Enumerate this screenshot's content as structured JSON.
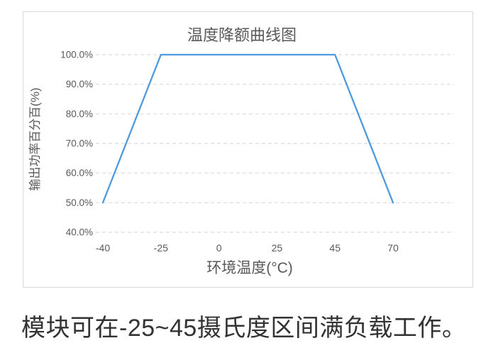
{
  "caption": "模块可在-25~45摄氏度区间满负载工作。",
  "chart_data": {
    "type": "line",
    "title": "温度降额曲线图",
    "xlabel": "环境温度(°C)",
    "ylabel": "输出功率百分百(%)",
    "x_categories": [
      -40,
      -25,
      0,
      25,
      45,
      70
    ],
    "x_axis_scale": "categorical",
    "y_ticks": [
      "100.0%",
      "90.0%",
      "80.0%",
      "70.0%",
      "60.0%",
      "50.0%",
      "40.0%"
    ],
    "ylim": [
      40,
      100
    ],
    "grid": "horizontal-dashed",
    "legend_position": "none",
    "colors": {
      "line": "#4e9ade",
      "grid": "#d9d9d9",
      "axis_text": "#595959",
      "frame_border": "#d9d9d9"
    },
    "series": [
      {
        "unit": "%",
        "points": [
          {
            "x": -40,
            "y": 50
          },
          {
            "x": -25,
            "y": 100
          },
          {
            "x": 45,
            "y": 100
          },
          {
            "x": 70,
            "y": 50
          }
        ]
      }
    ]
  }
}
